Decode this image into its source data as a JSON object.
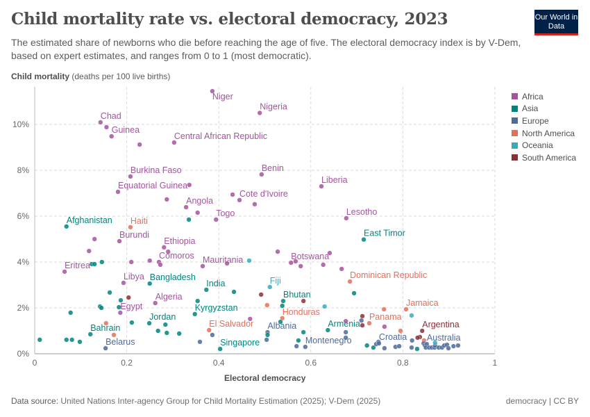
{
  "header": {
    "title": "Child mortality rate vs. electoral democracy, 2023",
    "subtitle": "The estimated share of newborns who die before reaching the age of five. The electoral democracy index is by V-Dem, based on expert estimates, and ranges from 0 to 1 (most democratic).",
    "logo": "Our World in Data"
  },
  "footer": {
    "source_label": "Data source:",
    "source": "United Nations Inter-agency Group for Child Mortality Estimation (2025); V-Dem (2025)",
    "license": "democracy | CC BY"
  },
  "chart_data": {
    "type": "scatter",
    "title": "Child mortality rate vs. electoral democracy, 2023",
    "ylabel_bold": "Child mortality",
    "ylabel_unit": "(deaths per 100 live births)",
    "xlabel": "Electoral democracy",
    "xlim": [
      0,
      1
    ],
    "ylim": [
      0,
      11.5
    ],
    "xticks": [
      "0",
      "0.2",
      "0.4",
      "0.6",
      "0.8",
      "1"
    ],
    "yticks": [
      "0%",
      "2%",
      "4%",
      "6%",
      "8%",
      "10%"
    ],
    "grid": true,
    "legend_position": "right",
    "legend": [
      {
        "name": "Africa",
        "color": "#a2559c"
      },
      {
        "name": "Asia",
        "color": "#00847e"
      },
      {
        "name": "Europe",
        "color": "#4c6a9c"
      },
      {
        "name": "North America",
        "color": "#e56e5a"
      },
      {
        "name": "Oceania",
        "color": "#38aaba"
      },
      {
        "name": "South America",
        "color": "#883039"
      }
    ],
    "points": [
      {
        "x": 0.386,
        "y": 11.45,
        "r": "Africa",
        "label": "Niger"
      },
      {
        "x": 0.489,
        "y": 10.5,
        "r": "Africa",
        "label": "Nigeria"
      },
      {
        "x": 0.143,
        "y": 10.09,
        "r": "Africa",
        "label": "Chad"
      },
      {
        "x": 0.156,
        "y": 9.88,
        "r": "Africa"
      },
      {
        "x": 0.167,
        "y": 9.48,
        "r": "Africa",
        "label": "Guinea"
      },
      {
        "x": 0.228,
        "y": 9.12,
        "r": "Africa"
      },
      {
        "x": 0.303,
        "y": 9.21,
        "r": "Africa",
        "label": "Central African Republic"
      },
      {
        "x": 0.208,
        "y": 7.73,
        "r": "Africa",
        "label": "Burkina Faso"
      },
      {
        "x": 0.493,
        "y": 7.82,
        "r": "Africa",
        "label": "Benin"
      },
      {
        "x": 0.181,
        "y": 7.06,
        "r": "Africa",
        "label": "Equatorial Guinea"
      },
      {
        "x": 0.336,
        "y": 7.36,
        "r": "Africa"
      },
      {
        "x": 0.287,
        "y": 6.73,
        "r": "Africa"
      },
      {
        "x": 0.329,
        "y": 6.39,
        "r": "Africa",
        "label": "Angola"
      },
      {
        "x": 0.354,
        "y": 6.15,
        "r": "Africa"
      },
      {
        "x": 0.394,
        "y": 5.85,
        "r": "Africa",
        "label": "Togo"
      },
      {
        "x": 0.43,
        "y": 6.94,
        "r": "Africa"
      },
      {
        "x": 0.445,
        "y": 6.7,
        "r": "Africa",
        "label": "Cote d'Ivoire"
      },
      {
        "x": 0.478,
        "y": 6.52,
        "r": "Africa"
      },
      {
        "x": 0.623,
        "y": 7.3,
        "r": "Africa",
        "label": "Liberia"
      },
      {
        "x": 0.677,
        "y": 5.91,
        "r": "Africa",
        "label": "Lesotho"
      },
      {
        "x": 0.335,
        "y": 5.85,
        "r": "Asia"
      },
      {
        "x": 0.069,
        "y": 5.55,
        "r": "Asia",
        "label": "Afghanistan"
      },
      {
        "x": 0.208,
        "y": 5.52,
        "r": "North America",
        "label": "Haiti"
      },
      {
        "x": 0.13,
        "y": 5.0,
        "r": "Africa"
      },
      {
        "x": 0.184,
        "y": 4.91,
        "r": "Africa",
        "label": "Burundi"
      },
      {
        "x": 0.281,
        "y": 4.64,
        "r": "Africa",
        "label": "Ethiopia"
      },
      {
        "x": 0.29,
        "y": 4.45,
        "r": "Africa"
      },
      {
        "x": 0.118,
        "y": 4.48,
        "r": "Africa"
      },
      {
        "x": 0.124,
        "y": 3.91,
        "r": "Asia"
      },
      {
        "x": 0.13,
        "y": 3.91,
        "r": "Asia"
      },
      {
        "x": 0.146,
        "y": 4.0,
        "r": "Asia"
      },
      {
        "x": 0.065,
        "y": 3.58,
        "r": "Africa",
        "label": "Eritrea"
      },
      {
        "x": 0.21,
        "y": 4.0,
        "r": "Africa"
      },
      {
        "x": 0.25,
        "y": 4.06,
        "r": "Africa"
      },
      {
        "x": 0.27,
        "y": 4.0,
        "r": "Africa",
        "label": "Comoros"
      },
      {
        "x": 0.273,
        "y": 3.88,
        "r": "Africa"
      },
      {
        "x": 0.365,
        "y": 3.82,
        "r": "Africa",
        "label": "Mauritania"
      },
      {
        "x": 0.418,
        "y": 3.94,
        "r": "Africa"
      },
      {
        "x": 0.466,
        "y": 4.06,
        "r": "Oceania"
      },
      {
        "x": 0.528,
        "y": 4.45,
        "r": "Africa"
      },
      {
        "x": 0.641,
        "y": 4.39,
        "r": "Africa"
      },
      {
        "x": 0.715,
        "y": 4.98,
        "r": "Asia",
        "label": "East Timor"
      },
      {
        "x": 0.557,
        "y": 3.97,
        "r": "Africa",
        "label": "Botswana"
      },
      {
        "x": 0.567,
        "y": 4.03,
        "r": "Africa"
      },
      {
        "x": 0.578,
        "y": 3.82,
        "r": "Africa"
      },
      {
        "x": 0.627,
        "y": 3.88,
        "r": "Africa"
      },
      {
        "x": 0.667,
        "y": 3.7,
        "r": "Africa"
      },
      {
        "x": 0.685,
        "y": 3.15,
        "r": "North America",
        "label": "Dominican Republic"
      },
      {
        "x": 0.694,
        "y": 2.64,
        "r": "Asia"
      },
      {
        "x": 0.193,
        "y": 3.09,
        "r": "Africa",
        "label": "Libya"
      },
      {
        "x": 0.25,
        "y": 3.06,
        "r": "Asia",
        "label": "Bangladesh"
      },
      {
        "x": 0.373,
        "y": 2.79,
        "r": "Asia",
        "label": "India"
      },
      {
        "x": 0.433,
        "y": 2.7,
        "r": "Asia"
      },
      {
        "x": 0.163,
        "y": 2.67,
        "r": "Asia"
      },
      {
        "x": 0.204,
        "y": 2.45,
        "r": "South America"
      },
      {
        "x": 0.187,
        "y": 2.33,
        "r": "Asia"
      },
      {
        "x": 0.142,
        "y": 2.06,
        "r": "Asia"
      },
      {
        "x": 0.145,
        "y": 2.0,
        "r": "Asia"
      },
      {
        "x": 0.262,
        "y": 2.21,
        "r": "Africa",
        "label": "Algeria"
      },
      {
        "x": 0.183,
        "y": 2.03,
        "r": "Asia"
      },
      {
        "x": 0.186,
        "y": 1.79,
        "r": "Africa",
        "label": "Egypt"
      },
      {
        "x": 0.078,
        "y": 1.79,
        "r": "Asia"
      },
      {
        "x": 0.354,
        "y": 2.3,
        "r": "Asia"
      },
      {
        "x": 0.348,
        "y": 1.73,
        "r": "Asia",
        "label": "Kyrgyzstan"
      },
      {
        "x": 0.155,
        "y": 1.33,
        "r": "North America"
      },
      {
        "x": 0.211,
        "y": 1.36,
        "r": "Asia"
      },
      {
        "x": 0.249,
        "y": 1.33,
        "r": "Asia",
        "label": "Jordan"
      },
      {
        "x": 0.284,
        "y": 1.27,
        "r": "Asia"
      },
      {
        "x": 0.121,
        "y": 0.85,
        "r": "Asia",
        "label": "Bahrain"
      },
      {
        "x": 0.172,
        "y": 0.82,
        "r": "North America"
      },
      {
        "x": 0.268,
        "y": 1.0,
        "r": "Asia"
      },
      {
        "x": 0.287,
        "y": 0.91,
        "r": "Asia"
      },
      {
        "x": 0.314,
        "y": 0.88,
        "r": "Asia"
      },
      {
        "x": 0.379,
        "y": 1.03,
        "r": "North America",
        "label": "El Salvador"
      },
      {
        "x": 0.386,
        "y": 0.82,
        "r": "Europe"
      },
      {
        "x": 0.011,
        "y": 0.61,
        "r": "Asia"
      },
      {
        "x": 0.069,
        "y": 0.61,
        "r": "Asia"
      },
      {
        "x": 0.081,
        "y": 0.61,
        "r": "Asia"
      },
      {
        "x": 0.098,
        "y": 0.52,
        "r": "Asia"
      },
      {
        "x": 0.154,
        "y": 0.24,
        "r": "Europe",
        "label": "Belarus"
      },
      {
        "x": 0.359,
        "y": 0.52,
        "r": "Europe"
      },
      {
        "x": 0.403,
        "y": 0.21,
        "r": "Asia",
        "label": "Singapore"
      },
      {
        "x": 0.511,
        "y": 2.91,
        "r": "Oceania",
        "label": "Fiji"
      },
      {
        "x": 0.492,
        "y": 2.58,
        "r": "South America"
      },
      {
        "x": 0.54,
        "y": 2.3,
        "r": "Asia",
        "label": "Bhutan"
      },
      {
        "x": 0.538,
        "y": 2.09,
        "r": "Asia"
      },
      {
        "x": 0.505,
        "y": 2.12,
        "r": "North America"
      },
      {
        "x": 0.584,
        "y": 2.3,
        "r": "South America"
      },
      {
        "x": 0.63,
        "y": 2.06,
        "r": "Oceania"
      },
      {
        "x": 0.538,
        "y": 1.55,
        "r": "North America",
        "label": "Honduras"
      },
      {
        "x": 0.534,
        "y": 1.39,
        "r": "Asia"
      },
      {
        "x": 0.468,
        "y": 1.52,
        "r": "Africa"
      },
      {
        "x": 0.506,
        "y": 0.94,
        "r": "Europe",
        "label": "Albania"
      },
      {
        "x": 0.506,
        "y": 0.82,
        "r": "Asia"
      },
      {
        "x": 0.504,
        "y": 0.61,
        "r": "Europe"
      },
      {
        "x": 0.637,
        "y": 1.03,
        "r": "Asia",
        "label": "Armenia"
      },
      {
        "x": 0.584,
        "y": 0.94,
        "r": "Asia"
      },
      {
        "x": 0.573,
        "y": 0.58,
        "r": "Asia"
      },
      {
        "x": 0.588,
        "y": 0.3,
        "r": "Europe",
        "label": "Montenegro"
      },
      {
        "x": 0.569,
        "y": 0.33,
        "r": "Europe"
      },
      {
        "x": 0.676,
        "y": 1.42,
        "r": "Africa"
      },
      {
        "x": 0.676,
        "y": 0.94,
        "r": "Europe"
      },
      {
        "x": 0.676,
        "y": 0.7,
        "r": "Europe"
      },
      {
        "x": 0.712,
        "y": 1.64,
        "r": "South America"
      },
      {
        "x": 0.71,
        "y": 1.45,
        "r": "Europe"
      },
      {
        "x": 0.712,
        "y": 1.24,
        "r": "South America"
      },
      {
        "x": 0.727,
        "y": 1.33,
        "r": "North America",
        "label": "Panama"
      },
      {
        "x": 0.759,
        "y": 1.94,
        "r": "North America"
      },
      {
        "x": 0.807,
        "y": 1.94,
        "r": "North America",
        "label": "Jamaica"
      },
      {
        "x": 0.76,
        "y": 1.18,
        "r": "Africa"
      },
      {
        "x": 0.819,
        "y": 1.67,
        "r": "Oceania"
      },
      {
        "x": 0.795,
        "y": 1.0,
        "r": "North America"
      },
      {
        "x": 0.842,
        "y": 1.0,
        "r": "South America",
        "label": "Argentina"
      },
      {
        "x": 0.837,
        "y": 0.73,
        "r": "South America"
      },
      {
        "x": 0.832,
        "y": 0.7,
        "r": "South America"
      },
      {
        "x": 0.846,
        "y": 0.58,
        "r": "North America"
      },
      {
        "x": 0.722,
        "y": 0.36,
        "r": "Asia"
      },
      {
        "x": 0.736,
        "y": 0.27,
        "r": "Asia"
      },
      {
        "x": 0.742,
        "y": 0.42,
        "r": "Europe"
      },
      {
        "x": 0.747,
        "y": 0.52,
        "r": "Europe"
      },
      {
        "x": 0.748,
        "y": 0.45,
        "r": "Europe",
        "label": "Croatia"
      },
      {
        "x": 0.76,
        "y": 0.24,
        "r": "Europe"
      },
      {
        "x": 0.784,
        "y": 0.3,
        "r": "Europe"
      },
      {
        "x": 0.792,
        "y": 0.33,
        "r": "Europe"
      },
      {
        "x": 0.82,
        "y": 0.58,
        "r": "Europe"
      },
      {
        "x": 0.819,
        "y": 0.27,
        "r": "Europe"
      },
      {
        "x": 0.831,
        "y": 0.21,
        "r": "Asia"
      },
      {
        "x": 0.845,
        "y": 0.45,
        "r": "Europe"
      },
      {
        "x": 0.848,
        "y": 0.36,
        "r": "Europe"
      },
      {
        "x": 0.852,
        "y": 0.42,
        "r": "Europe",
        "label": "Australia"
      },
      {
        "x": 0.85,
        "y": 0.27,
        "r": "Europe"
      },
      {
        "x": 0.857,
        "y": 0.27,
        "r": "Europe"
      },
      {
        "x": 0.863,
        "y": 0.27,
        "r": "Europe"
      },
      {
        "x": 0.869,
        "y": 0.27,
        "r": "Europe"
      },
      {
        "x": 0.87,
        "y": 0.36,
        "r": "Europe"
      },
      {
        "x": 0.878,
        "y": 0.27,
        "r": "Europe"
      },
      {
        "x": 0.885,
        "y": 0.27,
        "r": "Europe"
      },
      {
        "x": 0.89,
        "y": 0.36,
        "r": "Europe"
      },
      {
        "x": 0.896,
        "y": 0.39,
        "r": "Europe"
      },
      {
        "x": 0.899,
        "y": 0.24,
        "r": "Europe"
      },
      {
        "x": 0.91,
        "y": 0.33,
        "r": "Europe"
      },
      {
        "x": 0.92,
        "y": 0.36,
        "r": "Europe"
      },
      {
        "x": 0.87,
        "y": 0.48,
        "r": "Oceania"
      }
    ]
  }
}
